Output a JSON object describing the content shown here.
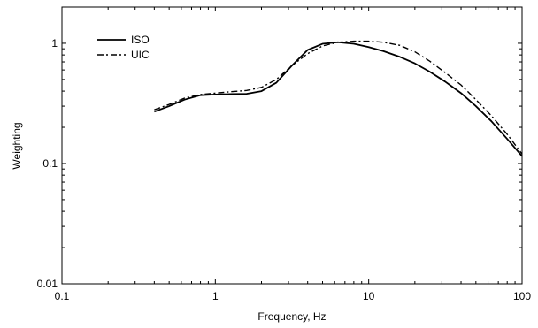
{
  "chart_data": {
    "type": "line",
    "title": "",
    "xlabel": "Frequency, Hz",
    "ylabel": "Weighting",
    "x_scale": "log",
    "y_scale": "log",
    "xlim": [
      0.1,
      100
    ],
    "ylim": [
      0.01,
      2
    ],
    "x_ticks": [
      {
        "value": 0.1,
        "label": "0.1"
      },
      {
        "value": 1,
        "label": "1"
      },
      {
        "value": 10,
        "label": "10"
      },
      {
        "value": 100,
        "label": "100"
      }
    ],
    "y_ticks": [
      {
        "value": 0.01,
        "label": "0.01"
      },
      {
        "value": 0.1,
        "label": "0.1"
      },
      {
        "value": 1,
        "label": "1"
      }
    ],
    "grid": false,
    "legend": "top-left",
    "series": [
      {
        "name": "ISO",
        "style": "solid",
        "x": [
          0.4,
          0.5,
          0.63,
          0.8,
          1,
          1.25,
          1.6,
          2,
          2.5,
          3.15,
          4,
          5,
          6.3,
          8,
          10,
          12.5,
          16,
          20,
          25,
          31.5,
          40,
          50,
          63,
          80,
          100
        ],
        "y": [
          0.27,
          0.3,
          0.34,
          0.37,
          0.375,
          0.378,
          0.38,
          0.4,
          0.47,
          0.65,
          0.88,
          0.99,
          1.02,
          0.99,
          0.93,
          0.86,
          0.77,
          0.68,
          0.58,
          0.48,
          0.385,
          0.3,
          0.225,
          0.16,
          0.115
        ]
      },
      {
        "name": "UIC",
        "style": "dash-dot",
        "x": [
          0.4,
          0.5,
          0.63,
          0.8,
          1,
          1.25,
          1.6,
          2,
          2.5,
          3.15,
          4,
          5,
          6.3,
          8,
          10,
          12.5,
          16,
          20,
          25,
          31.5,
          40,
          50,
          63,
          80,
          100
        ],
        "y": [
          0.28,
          0.31,
          0.35,
          0.375,
          0.385,
          0.395,
          0.405,
          0.43,
          0.5,
          0.65,
          0.82,
          0.95,
          1.02,
          1.04,
          1.04,
          1.02,
          0.96,
          0.85,
          0.71,
          0.57,
          0.45,
          0.34,
          0.25,
          0.175,
          0.12
        ]
      }
    ]
  }
}
